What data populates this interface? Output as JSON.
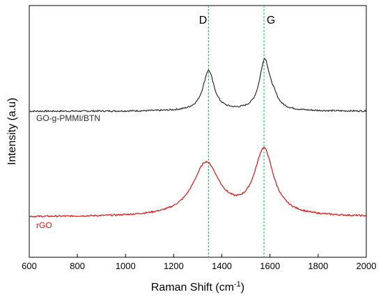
{
  "chart_data": {
    "type": "line",
    "xlabel": "Raman Shift (cm",
    "xlabel_sup": "-1",
    "xlabel_tail": ")",
    "ylabel": "Intensity (a.u)",
    "xlim": [
      600,
      2000
    ],
    "x_ticks": [
      600,
      800,
      1000,
      1200,
      1400,
      1600,
      1800,
      2000
    ],
    "y_ticks_shown": false,
    "grid": false,
    "legend": "none",
    "reference_lines": [
      {
        "label": "D",
        "x": 1345,
        "color": "#00cc44",
        "style": "dashed"
      },
      {
        "label": "G",
        "x": 1575,
        "color": "#00cc44",
        "style": "dashed"
      }
    ],
    "series": [
      {
        "name": "GO-g-PMMI/BTN",
        "color": "#2b2b2b",
        "baseline": 0.58,
        "peaks": [
          {
            "center": 1345,
            "height": 0.16,
            "width": 28
          },
          {
            "center": 1578,
            "height": 0.2,
            "width": 26
          }
        ],
        "shoulder": {
          "center": 1615,
          "height": 0.03,
          "width": 22
        }
      },
      {
        "name": "rGO",
        "color": "#dd1111",
        "baseline": 0.16,
        "peaks": [
          {
            "center": 1335,
            "height": 0.21,
            "width": 68
          },
          {
            "center": 1575,
            "height": 0.26,
            "width": 48
          }
        ]
      }
    ]
  }
}
